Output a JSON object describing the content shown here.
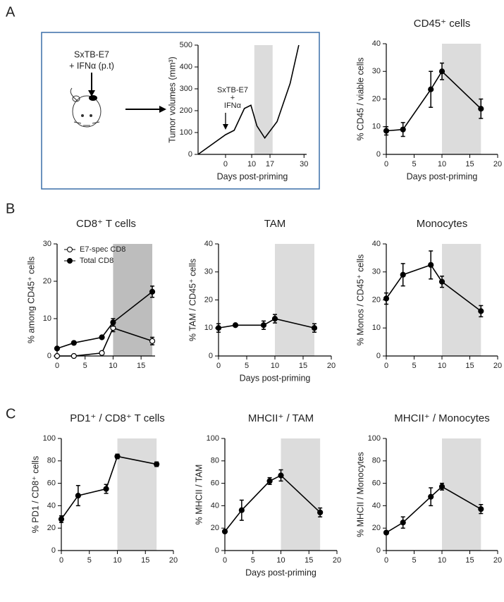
{
  "panel_labels": [
    "A",
    "B",
    "C"
  ],
  "schematic": {
    "line1": "SxTB-E7",
    "line2": "+ IFNα (p.t)"
  },
  "chart_data": [
    {
      "type": "line",
      "ylabel": "Tumor volumes (mm³)",
      "xlabel": "Days post-priming",
      "annotation": [
        "SxTB-E7",
        "+",
        "IFNα"
      ],
      "x": [
        -10.5,
        0,
        3.3,
        7.2,
        9.7,
        12,
        15,
        19.7,
        24.7,
        28
      ],
      "series": [
        {
          "color": "#000",
          "marker": "none",
          "values": [
            0,
            90,
            110,
            210,
            225,
            130,
            75,
            150,
            325,
            500
          ]
        }
      ],
      "xlim": [
        -10.5,
        31
      ],
      "ylim": [
        0,
        500
      ],
      "xticks": [
        0,
        10,
        17,
        30
      ],
      "yticks": [
        0,
        100,
        200,
        300,
        400,
        500
      ],
      "shade": [
        11,
        18
      ]
    },
    {
      "type": "line",
      "title": "CD45⁺ cells",
      "ylabel": "% CD45 / viable cells",
      "xlabel": "Days post-priming",
      "x": [
        0,
        3,
        8,
        10,
        17
      ],
      "series": [
        {
          "color": "#000",
          "marker": "filled",
          "values": [
            8.5,
            9,
            23.5,
            30,
            16.5
          ],
          "errors": [
            1.5,
            2.5,
            6.5,
            3,
            3.5
          ]
        }
      ],
      "xlim": [
        0,
        20
      ],
      "ylim": [
        0,
        40
      ],
      "xticks": [
        0,
        5,
        10,
        15,
        20
      ],
      "yticks": [
        0,
        10,
        20,
        30,
        40
      ],
      "shade": [
        10,
        17
      ]
    },
    {
      "type": "line",
      "title": "CD8⁺ T cells",
      "ylabel": "% among CD45⁺ cells",
      "legend": "upper left",
      "shade_color": "#bdbdbd",
      "x": [
        0,
        3,
        8,
        10,
        17
      ],
      "series": [
        {
          "name": "E7-spec CD8",
          "color": "#000",
          "marker": "open",
          "values": [
            0,
            0,
            0.8,
            7.5,
            4
          ],
          "errors": [
            0,
            0,
            0,
            1,
            1
          ]
        },
        {
          "name": "Total CD8",
          "color": "#000",
          "marker": "filled",
          "values": [
            2,
            3.5,
            5,
            9,
            17.2
          ],
          "errors": [
            0,
            0,
            0,
            1,
            1.5
          ]
        }
      ],
      "xlim": [
        0,
        17.5
      ],
      "ylim": [
        0,
        30
      ],
      "xticks": [
        0,
        5,
        10,
        15
      ],
      "yticks": [
        0,
        10,
        20,
        30
      ],
      "shade": [
        10,
        17
      ]
    },
    {
      "type": "line",
      "title": "TAM",
      "ylabel": "% TAM / CD45⁺ cells",
      "xlabel": "Days post-priming",
      "x": [
        0,
        3,
        8,
        10,
        17
      ],
      "series": [
        {
          "color": "#000",
          "marker": "filled",
          "values": [
            10,
            11,
            11,
            13.3,
            10
          ],
          "errors": [
            1.5,
            0.5,
            1.5,
            1.5,
            1.5
          ]
        }
      ],
      "xlim": [
        0,
        20
      ],
      "ylim": [
        0,
        40
      ],
      "xticks": [
        0,
        5,
        10,
        15,
        20
      ],
      "yticks": [
        0,
        10,
        20,
        30,
        40
      ],
      "shade": [
        10,
        17
      ]
    },
    {
      "type": "line",
      "title": "Monocytes",
      "ylabel": "% Monos / CD45⁺ cells",
      "x": [
        0,
        3,
        8,
        10,
        17
      ],
      "series": [
        {
          "color": "#000",
          "marker": "filled",
          "values": [
            20.5,
            29,
            32.5,
            26.5,
            16
          ],
          "errors": [
            2,
            4,
            5,
            2,
            2
          ]
        }
      ],
      "xlim": [
        0,
        20
      ],
      "ylim": [
        0,
        40
      ],
      "xticks": [
        0,
        5,
        10,
        15,
        20
      ],
      "yticks": [
        0,
        10,
        20,
        30,
        40
      ],
      "shade": [
        10,
        17
      ]
    },
    {
      "type": "line",
      "title": "PD1⁺ / CD8⁺ T cells",
      "ylabel": "% PD1 / CD8⁺ cells",
      "x": [
        0,
        3,
        8,
        10,
        17
      ],
      "series": [
        {
          "color": "#000",
          "marker": "filled",
          "values": [
            28,
            49,
            55,
            84,
            77
          ],
          "errors": [
            3,
            9,
            4,
            2,
            2
          ]
        }
      ],
      "xlim": [
        0,
        20
      ],
      "ylim": [
        0,
        100
      ],
      "xticks": [
        0,
        5,
        10,
        15,
        20
      ],
      "yticks": [
        0,
        20,
        40,
        60,
        80,
        100
      ],
      "shade": [
        10,
        17
      ]
    },
    {
      "type": "line",
      "title": "MHCII⁺ / TAM",
      "ylabel": "% MHCII / TAM",
      "xlabel": "Days post-priming",
      "x": [
        0,
        3,
        8,
        10,
        17
      ],
      "series": [
        {
          "color": "#000",
          "marker": "filled",
          "values": [
            17,
            36,
            62,
            67,
            34
          ],
          "errors": [
            0,
            9,
            3,
            5,
            4
          ]
        }
      ],
      "xlim": [
        0,
        20
      ],
      "ylim": [
        0,
        100
      ],
      "xticks": [
        0,
        5,
        10,
        15,
        20
      ],
      "yticks": [
        0,
        20,
        40,
        60,
        80,
        100
      ],
      "shade": [
        10,
        17
      ]
    },
    {
      "type": "line",
      "title": "MHCII⁺ / Monocytes",
      "ylabel": "% MHCII / Monocytes",
      "x": [
        0,
        3,
        8,
        10,
        17
      ],
      "series": [
        {
          "color": "#000",
          "marker": "filled",
          "values": [
            16,
            25,
            48,
            57,
            37
          ],
          "errors": [
            0,
            5,
            8,
            3,
            4
          ]
        }
      ],
      "xlim": [
        0,
        20
      ],
      "ylim": [
        0,
        100
      ],
      "xticks": [
        0,
        5,
        10,
        15,
        20
      ],
      "yticks": [
        0,
        20,
        40,
        60,
        80,
        100
      ],
      "shade": [
        10,
        17
      ]
    }
  ]
}
